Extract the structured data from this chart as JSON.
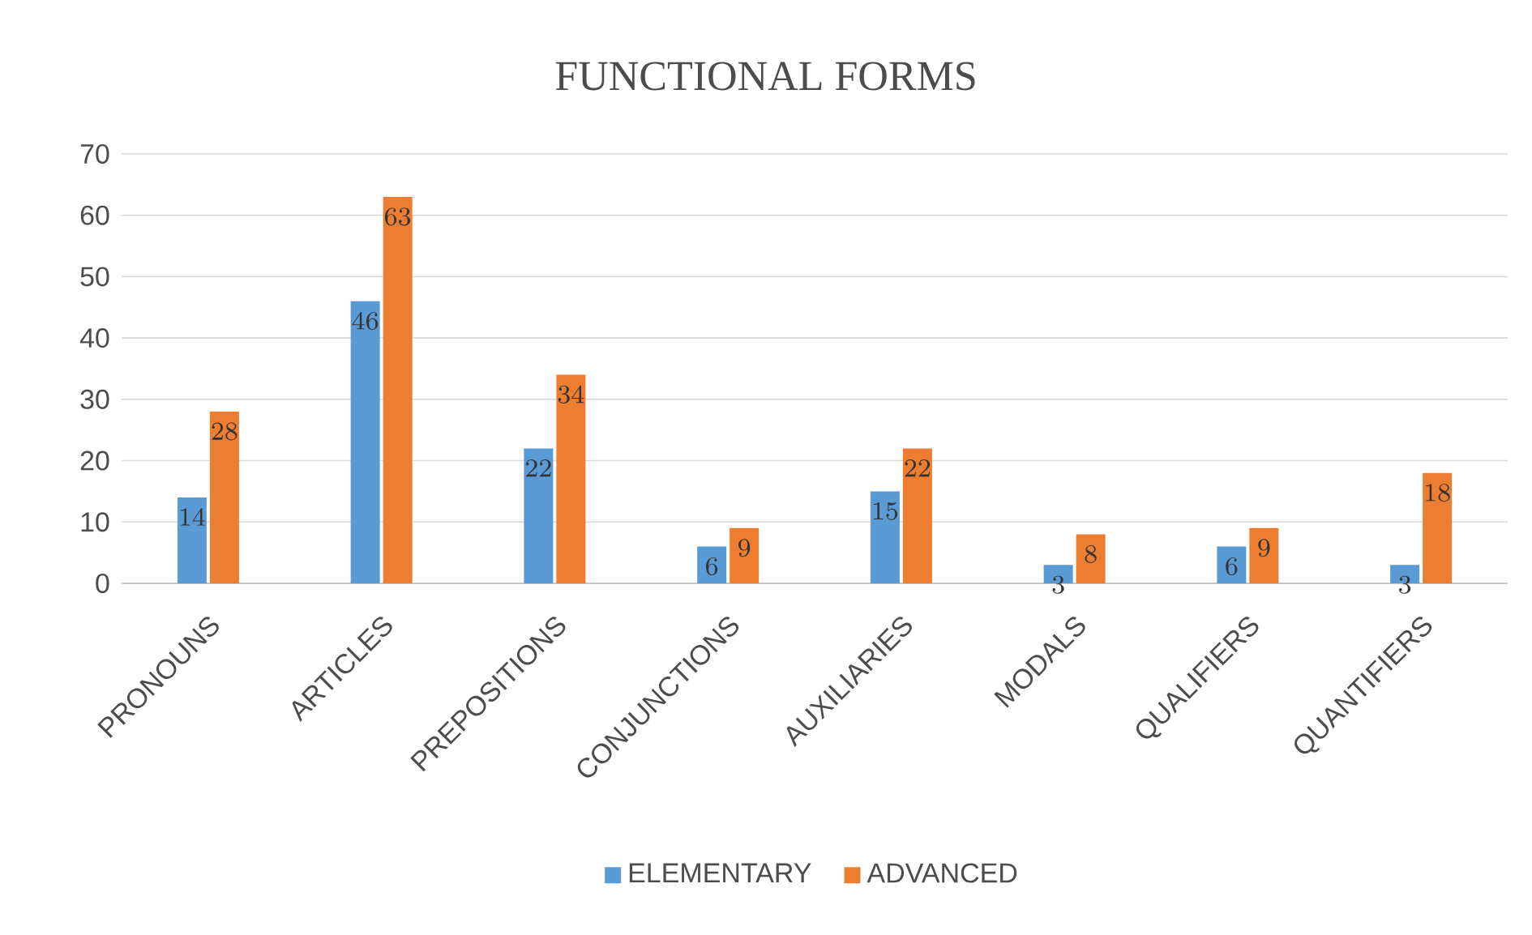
{
  "chart_data": {
    "type": "bar",
    "title": "FUNCTIONAL FORMS",
    "categories": [
      "PRONOUNS",
      "ARTICLES",
      "PREPOSITIONS",
      "CONJUNCTIONS",
      "AUXILIARIES",
      "MODALS",
      "QUALIFIERS",
      "QUANTIFIERS"
    ],
    "series": [
      {
        "name": "ELEMENTARY",
        "color": "#5b9bd5",
        "values": [
          14,
          46,
          22,
          6,
          15,
          3,
          6,
          3
        ]
      },
      {
        "name": "ADVANCED",
        "color": "#ed7d31",
        "values": [
          28,
          63,
          34,
          9,
          22,
          8,
          9,
          18
        ]
      }
    ],
    "ylim": [
      0,
      70
    ],
    "yticks": [
      0,
      10,
      20,
      30,
      40,
      50,
      60,
      70
    ],
    "grid": "y",
    "legend": "bottom",
    "data_labels": true
  }
}
